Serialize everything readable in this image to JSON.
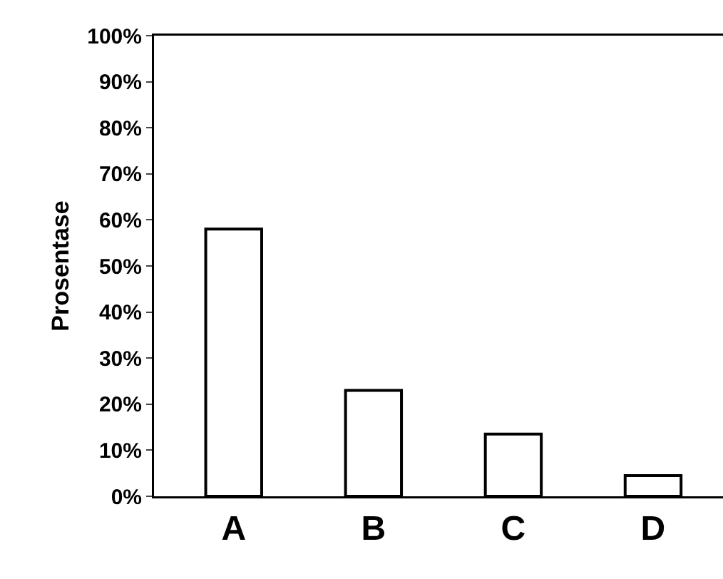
{
  "chart_data": {
    "type": "bar",
    "ylabel": "Prosentase",
    "categories": [
      "A",
      "B",
      "C",
      "D"
    ],
    "values": [
      58,
      23,
      13.5,
      4.5
    ],
    "color": "#ffffff",
    "ylim": [
      0,
      100
    ],
    "yticks": [
      {
        "value": 0,
        "label": "0%"
      },
      {
        "value": 10,
        "label": "10%"
      },
      {
        "value": 20,
        "label": "20%"
      },
      {
        "value": 30,
        "label": "30%"
      },
      {
        "value": 40,
        "label": "40%"
      },
      {
        "value": 50,
        "label": "50%"
      },
      {
        "value": 60,
        "label": "60%"
      },
      {
        "value": 70,
        "label": "70%"
      },
      {
        "value": 80,
        "label": "80%"
      },
      {
        "value": 90,
        "label": "90%"
      },
      {
        "value": 100,
        "label": "100%"
      }
    ],
    "grid": false,
    "legend": false
  }
}
